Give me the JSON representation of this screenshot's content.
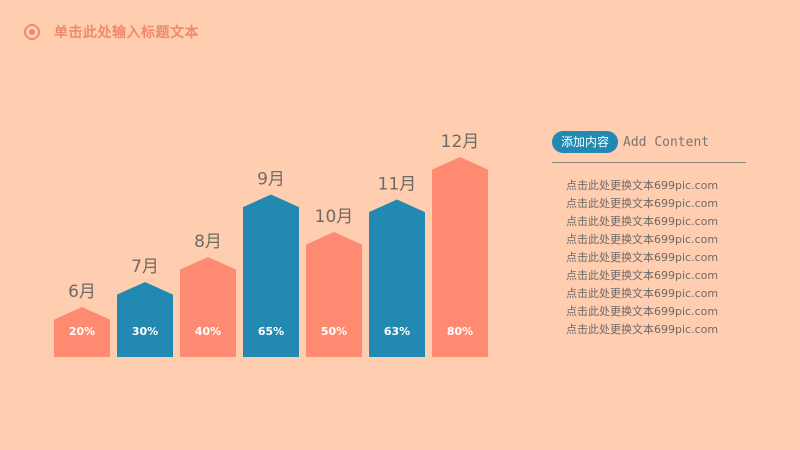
{
  "header": {
    "title": "单击此处输入标题文本",
    "logo_icon": "ring-dot-icon"
  },
  "colors": {
    "background": "#ffcdb0",
    "salmon": "#ff8a72",
    "blue": "#2189b2",
    "accent": "#f08a6c"
  },
  "chart_data": {
    "type": "bar",
    "categories": [
      "6月",
      "7月",
      "8月",
      "9月",
      "10月",
      "11月",
      "12月"
    ],
    "values": [
      20,
      30,
      40,
      65,
      50,
      63,
      80
    ],
    "value_labels": [
      "20%",
      "30%",
      "40%",
      "65%",
      "50%",
      "63%",
      "80%"
    ],
    "bar_colors": [
      "#ff8a72",
      "#2189b2",
      "#ff8a72",
      "#2189b2",
      "#ff8a72",
      "#2189b2",
      "#ff8a72"
    ],
    "bar_shape": "arrow-up",
    "title": "",
    "xlabel": "",
    "ylabel": "",
    "grid": false,
    "legend": "none"
  },
  "side_panel": {
    "pill": "添加内容",
    "subtitle": "Add Content",
    "lines": [
      "点击此处更换文本699pic.com",
      "点击此处更换文本699pic.com",
      "点击此处更换文本699pic.com",
      "点击此处更换文本699pic.com",
      "点击此处更换文本699pic.com",
      "点击此处更换文本699pic.com",
      "点击此处更换文本699pic.com",
      "点击此处更换文本699pic.com",
      "点击此处更换文本699pic.com"
    ]
  }
}
